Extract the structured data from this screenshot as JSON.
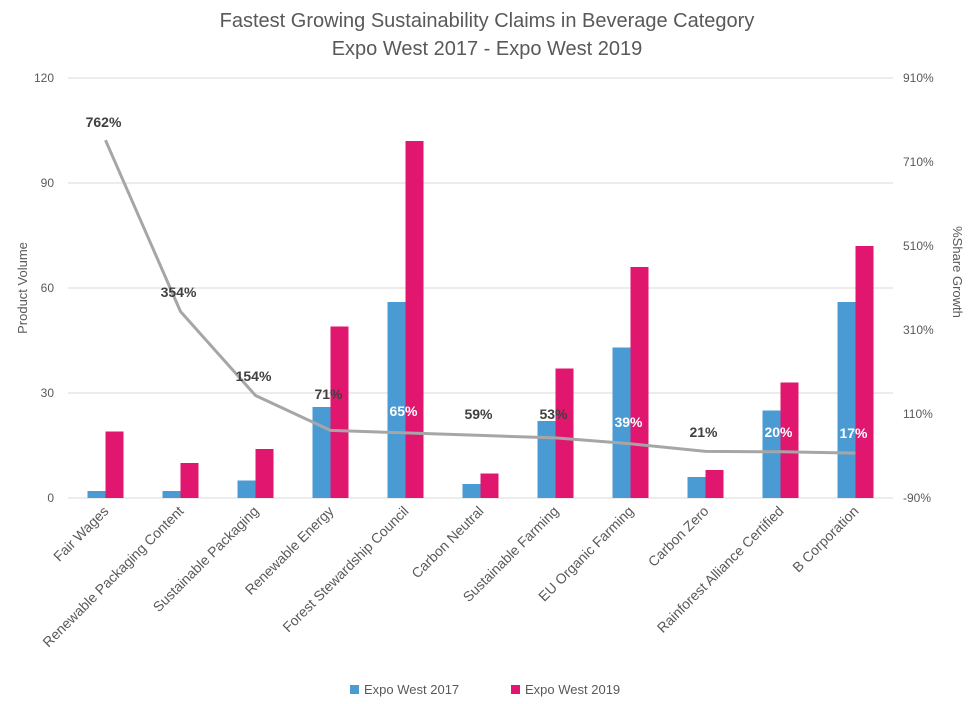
{
  "chart_data": {
    "type": "bar",
    "title": [
      "Fastest Growing Sustainability Claims in Beverage Category",
      "Expo West 2017 - Expo West 2019"
    ],
    "ylabel": "Product Volume",
    "y2label": "%Share Growth",
    "ylim": [
      0,
      120
    ],
    "yticks": [
      "0",
      "30",
      "60",
      "90",
      "120"
    ],
    "y2lim": [
      -90,
      910
    ],
    "y2ticks": [
      "-90%",
      "110%",
      "310%",
      "510%",
      "710%",
      "910%"
    ],
    "grid": true,
    "legend_position": "bottom",
    "categories": [
      "Fair Wages",
      "Renewable Packaging Content",
      "Sustainable Packaging",
      "Renewable Energy",
      "Forest Stewardship Council",
      "Carbon Neutral",
      "Sustainable Farming",
      "EU Organic Farming",
      "Carbon Zero",
      "Rainforest Alliance Certified",
      "B Corporation"
    ],
    "series": [
      {
        "name": "Expo West 2017",
        "color": "#4a9bd4",
        "values": [
          2,
          2,
          5,
          26,
          56,
          4,
          22,
          43,
          6,
          25,
          56
        ]
      },
      {
        "name": "Expo West 2019",
        "color": "#e0166f",
        "values": [
          19,
          10,
          14,
          49,
          102,
          7,
          37,
          66,
          8,
          33,
          72
        ]
      }
    ],
    "growth": {
      "axis": "secondary",
      "color": "#a6a6a6",
      "values": [
        762,
        354,
        154,
        71,
        65,
        59,
        53,
        39,
        21,
        20,
        17
      ],
      "labels": [
        "762%",
        "354%",
        "154%",
        "71%",
        "65%",
        "59%",
        "53%",
        "39%",
        "21%",
        "20%",
        "17%"
      ]
    }
  }
}
